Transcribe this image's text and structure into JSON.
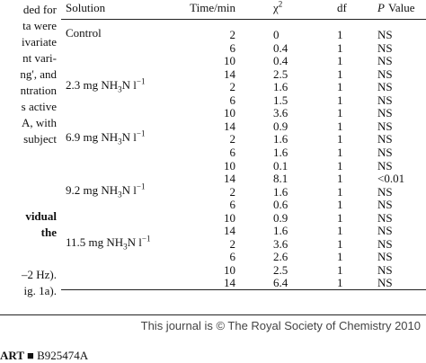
{
  "left_column": {
    "para1": [
      "ded for",
      "ta were",
      "ivariate",
      "nt vari-",
      "ng', and",
      "ntration",
      "s active",
      "A, with",
      "subject"
    ],
    "heading": [
      "vidual",
      "the"
    ],
    "para2": [
      "–2 Hz).",
      "ig. 1a)."
    ]
  },
  "table": {
    "header": {
      "solution": "Solution",
      "time": "Time/min",
      "chi": {
        "base": "χ",
        "sup": "2"
      },
      "df": "df",
      "p": {
        "italic": "P",
        "rest": "Value"
      }
    },
    "groups": [
      {
        "solution": {
          "text": "Control"
        },
        "rows": [
          [
            2,
            0,
            1,
            "NS"
          ],
          [
            6,
            0.4,
            1,
            "NS"
          ],
          [
            10,
            0.4,
            1,
            "NS"
          ],
          [
            14,
            2.5,
            1,
            "NS"
          ]
        ]
      },
      {
        "solution": {
          "text": "2.3 mg NH",
          "sub": "3",
          "mid": "N l",
          "sup": "−1"
        },
        "rows": [
          [
            2,
            1.6,
            1,
            "NS"
          ],
          [
            6,
            1.5,
            1,
            "NS"
          ],
          [
            10,
            3.6,
            1,
            "NS"
          ],
          [
            14,
            0.9,
            1,
            "NS"
          ]
        ]
      },
      {
        "solution": {
          "text": "6.9 mg NH",
          "sub": "3",
          "mid": "N l",
          "sup": "−1"
        },
        "rows": [
          [
            2,
            1.6,
            1,
            "NS"
          ],
          [
            6,
            1.6,
            1,
            "NS"
          ],
          [
            10,
            0.1,
            1,
            "NS"
          ],
          [
            14,
            8.1,
            1,
            "<0.01"
          ]
        ]
      },
      {
        "solution": {
          "text": "9.2 mg NH",
          "sub": "3",
          "mid": "N l",
          "sup": "−1"
        },
        "rows": [
          [
            2,
            1.6,
            1,
            "NS"
          ],
          [
            6,
            0.6,
            1,
            "NS"
          ],
          [
            10,
            0.9,
            1,
            "NS"
          ],
          [
            14,
            1.6,
            1,
            "NS"
          ]
        ]
      },
      {
        "solution": {
          "text": "11.5 mg NH",
          "sub": "3",
          "mid": "N l",
          "sup": "−1"
        },
        "rows": [
          [
            2,
            3.6,
            1,
            "NS"
          ],
          [
            6,
            2.6,
            1,
            "NS"
          ],
          [
            10,
            2.5,
            1,
            "NS"
          ],
          [
            14,
            6.4,
            1,
            "NS"
          ]
        ]
      }
    ]
  },
  "footer": "This journal is © The Royal Society of Chemistry 2010",
  "running_head": {
    "section": "ART",
    "id": "B925474A"
  }
}
